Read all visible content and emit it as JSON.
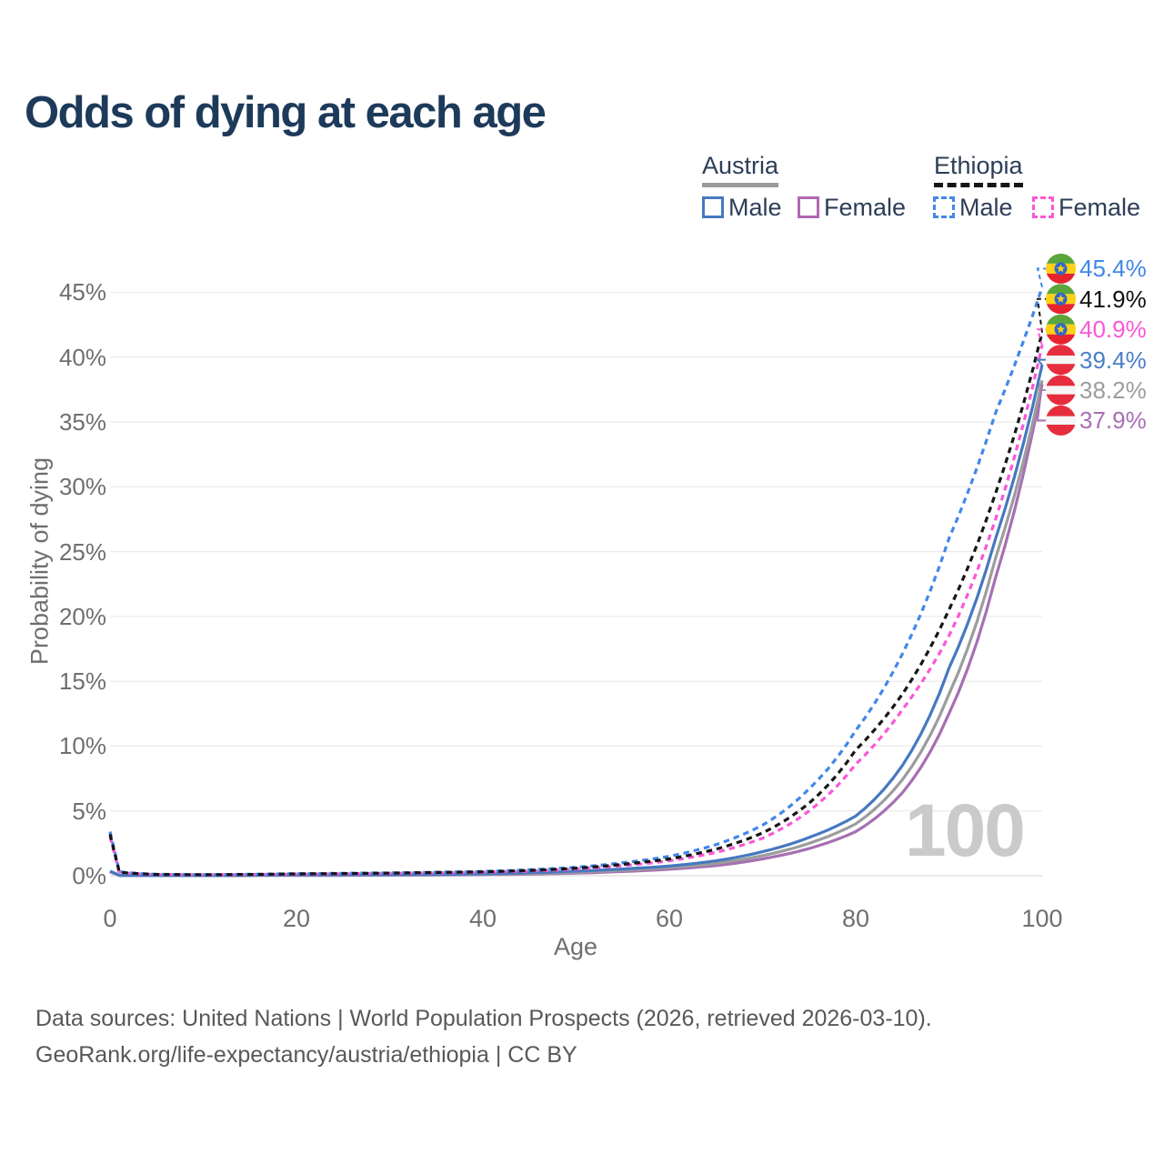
{
  "title": "Odds of dying at each age",
  "watermark": "100",
  "legend": {
    "groups": [
      {
        "name": "Austria",
        "line_style": "solid",
        "underline_color": "#9b9b9b",
        "items": [
          {
            "label": "Male",
            "color": "#4678c1"
          },
          {
            "label": "Female",
            "color": "#b268b2"
          }
        ]
      },
      {
        "name": "Ethiopia",
        "line_style": "dashed",
        "underline_color": "#161616",
        "items": [
          {
            "label": "Male",
            "color": "#4188e8"
          },
          {
            "label": "Female",
            "color": "#fb57d7"
          }
        ]
      }
    ]
  },
  "chart_data": {
    "type": "line",
    "title": "Odds of dying at each age",
    "xlabel": "Age",
    "ylabel": "Probability of dying",
    "x_ticks": [
      0,
      20,
      40,
      60,
      80,
      100
    ],
    "y_tick_labels": [
      "0%",
      "5%",
      "10%",
      "15%",
      "20%",
      "25%",
      "30%",
      "35%",
      "40%",
      "45%"
    ],
    "y_tick_values": [
      0,
      5,
      10,
      15,
      20,
      25,
      30,
      35,
      40,
      45
    ],
    "xlim": [
      0,
      100
    ],
    "ylim_pct": [
      0,
      47
    ],
    "grid": "horizontal",
    "ages": [
      0,
      1,
      5,
      10,
      15,
      20,
      25,
      30,
      35,
      40,
      45,
      50,
      55,
      60,
      65,
      70,
      75,
      80,
      85,
      90,
      95,
      100
    ],
    "series": [
      {
        "id": "ethiopia-male",
        "country": "Ethiopia",
        "sex": "Male",
        "style": "dashed",
        "color": "#4188e8",
        "label_color": "#4188e8",
        "flag": "ethiopia",
        "end_label": "45.4%",
        "values_pct": [
          3.4,
          0.3,
          0.11,
          0.09,
          0.11,
          0.16,
          0.19,
          0.22,
          0.27,
          0.33,
          0.46,
          0.65,
          1.0,
          1.5,
          2.4,
          3.9,
          6.7,
          11.2,
          17.1,
          26.0,
          35.7,
          45.4
        ]
      },
      {
        "id": "ethiopia-all",
        "country": "Ethiopia",
        "sex": "All",
        "style": "dashed",
        "color": "#161616",
        "label_color": "#111111",
        "flag": "ethiopia",
        "end_label": "41.9%",
        "values_pct": [
          3.2,
          0.27,
          0.1,
          0.08,
          0.1,
          0.14,
          0.17,
          0.2,
          0.25,
          0.3,
          0.41,
          0.58,
          0.88,
          1.3,
          2.05,
          3.3,
          5.6,
          9.7,
          14.0,
          20.5,
          29.5,
          41.9
        ]
      },
      {
        "id": "ethiopia-female",
        "country": "Ethiopia",
        "sex": "Female",
        "style": "dashed",
        "color": "#fb57d7",
        "label_color": "#fb57d7",
        "flag": "ethiopia",
        "end_label": "40.9%",
        "values_pct": [
          3.0,
          0.24,
          0.09,
          0.07,
          0.09,
          0.12,
          0.15,
          0.18,
          0.22,
          0.27,
          0.36,
          0.52,
          0.78,
          1.15,
          1.8,
          2.9,
          5.0,
          8.6,
          12.8,
          18.5,
          27.5,
          40.9
        ]
      },
      {
        "id": "austria-male",
        "country": "Austria",
        "sex": "Male",
        "style": "solid",
        "color": "#4678c1",
        "label_color": "#4a7fc9",
        "flag": "austria",
        "end_label": "39.4%",
        "values_pct": [
          0.35,
          0.03,
          0.012,
          0.012,
          0.035,
          0.07,
          0.075,
          0.08,
          0.1,
          0.15,
          0.23,
          0.36,
          0.52,
          0.75,
          1.15,
          1.85,
          2.95,
          4.6,
          8.5,
          16.0,
          26.0,
          39.4
        ]
      },
      {
        "id": "austria-all",
        "country": "Austria",
        "sex": "All",
        "style": "solid",
        "color": "#9c9c9c",
        "label_color": "#9c9c9c",
        "flag": "austria",
        "end_label": "38.2%",
        "values_pct": [
          0.32,
          0.026,
          0.01,
          0.01,
          0.025,
          0.05,
          0.055,
          0.06,
          0.075,
          0.11,
          0.17,
          0.27,
          0.42,
          0.62,
          0.95,
          1.55,
          2.5,
          4.0,
          7.4,
          14.0,
          24.5,
          38.2
        ]
      },
      {
        "id": "austria-female",
        "country": "Austria",
        "sex": "Female",
        "style": "solid",
        "color": "#a76fb3",
        "label_color": "#a76fb3",
        "flag": "austria",
        "end_label": "37.9%",
        "values_pct": [
          0.3,
          0.023,
          0.009,
          0.009,
          0.018,
          0.028,
          0.03,
          0.04,
          0.055,
          0.08,
          0.13,
          0.2,
          0.32,
          0.5,
          0.78,
          1.3,
          2.1,
          3.4,
          6.4,
          12.5,
          23.0,
          37.9
        ]
      }
    ],
    "flag_colors": {
      "ethiopia": {
        "green": "#5aa53c",
        "yellow": "#fcd116",
        "red": "#e7232e",
        "disc": "#2f67c9",
        "star": "#fcd116"
      },
      "austria": {
        "red": "#e62d3e",
        "white": "#f5f5f5"
      }
    }
  },
  "footer": {
    "line1": "Data sources: United Nations | World Population Prospects (2026, retrieved 2026-03-10).",
    "line2": "GeoRank.org/life-expectancy/austria/ethiopia | CC BY"
  }
}
